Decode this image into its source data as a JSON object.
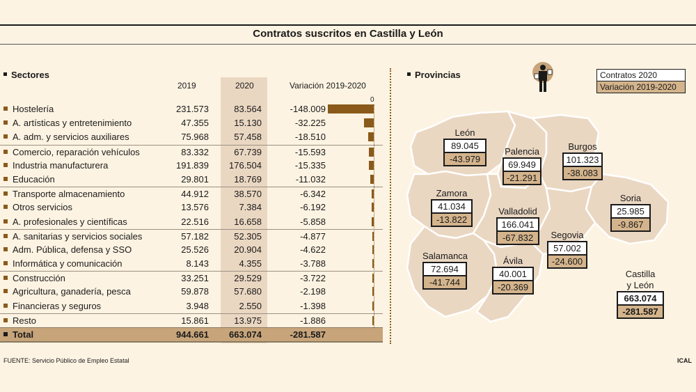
{
  "title": "Contratos suscritos en Castilla y León",
  "sectors_heading": "Sectores",
  "provinces_heading": "Provincias",
  "columns": {
    "y2019": "2019",
    "y2020": "2020",
    "variation": "Variación 2019-2020"
  },
  "zero_label": "0",
  "legend": {
    "contracts": "Contratos 2020",
    "variation": "Variación 2019-2020"
  },
  "total": {
    "label": "Total",
    "v2019": "944.661",
    "v2020": "663.074",
    "variation": "-281.587"
  },
  "region": {
    "name_line1": "Castilla",
    "name_line2": "y León",
    "contracts": "663.074",
    "variation": "-281.587"
  },
  "source": "FUENTE: Servicio Público de Empleo Estatal",
  "credit": "ICAL",
  "colors": {
    "accent": "#8a5a1b",
    "highlight": "#d4b48c",
    "map": "#ead7c2",
    "background": "#fdf3e2"
  },
  "chart_data": [
    {
      "type": "bar",
      "categories": [
        "Hostelería",
        "A. artísticas y entretenimiento",
        "A. adm. y servicios auxiliares",
        "Comercio, reparación vehículos",
        "Industria manufacturera",
        "Educación",
        "Transporte  almacenamiento",
        "Otros servicios",
        "A. profesionales y científicas",
        "A. sanitarias y servicios sociales",
        "Adm. Pública, defensa y SSO",
        "Informática y comunicación",
        "Construcción",
        "Agricultura, ganadería, pesca",
        "Financieras y seguros",
        "Resto"
      ],
      "v2019": [
        "231.573",
        "47.355",
        "75.968",
        "83.332",
        "191.839",
        "29.801",
        "44.912",
        "13.576",
        "22.516",
        "57.182",
        "25.526",
        "8.143",
        "33.251",
        "59.878",
        "3.948",
        "15.861"
      ],
      "v2020": [
        "83.564",
        "15.130",
        "57.458",
        "67.739",
        "176.504",
        "18.769",
        "38.570",
        "7.384",
        "16.658",
        "52.305",
        "20.904",
        "4.355",
        "29.529",
        "57.680",
        "2.550",
        "13.975"
      ],
      "variation_labels": [
        "-148.009",
        "-32.225",
        "-18.510",
        "-15.593",
        "-15.335",
        "-11.032",
        "-6.342",
        "-6.192",
        "-5.858",
        "-4.877",
        "-4.622",
        "-3.788",
        "-3.722",
        "-2.198",
        "-1.398",
        "-1.886"
      ],
      "values": [
        -148009,
        -32225,
        -18510,
        -15593,
        -15335,
        -11032,
        -6342,
        -6192,
        -5858,
        -4877,
        -4622,
        -3788,
        -3722,
        -2198,
        -1398,
        -1886
      ],
      "separators_before": [
        3,
        6,
        9,
        12,
        15
      ]
    },
    {
      "type": "table",
      "provinces": [
        {
          "name": "León",
          "contracts": "89.045",
          "variation": "-43.979"
        },
        {
          "name": "Palencia",
          "contracts": "69.949",
          "variation": "-21.291"
        },
        {
          "name": "Burgos",
          "contracts": "101.323",
          "variation": "-38.083"
        },
        {
          "name": "Zamora",
          "contracts": "41.034",
          "variation": "-13.822"
        },
        {
          "name": "Valladolid",
          "contracts": "166.041",
          "variation": "-67.832"
        },
        {
          "name": "Soria",
          "contracts": "25.985",
          "variation": "-9.867"
        },
        {
          "name": "Segovia",
          "contracts": "57.002",
          "variation": "-24.600"
        },
        {
          "name": "Salamanca",
          "contracts": "72.694",
          "variation": "-41.744"
        },
        {
          "name": "Ávila",
          "contracts": "40.001",
          "variation": "-20.369"
        }
      ]
    }
  ]
}
